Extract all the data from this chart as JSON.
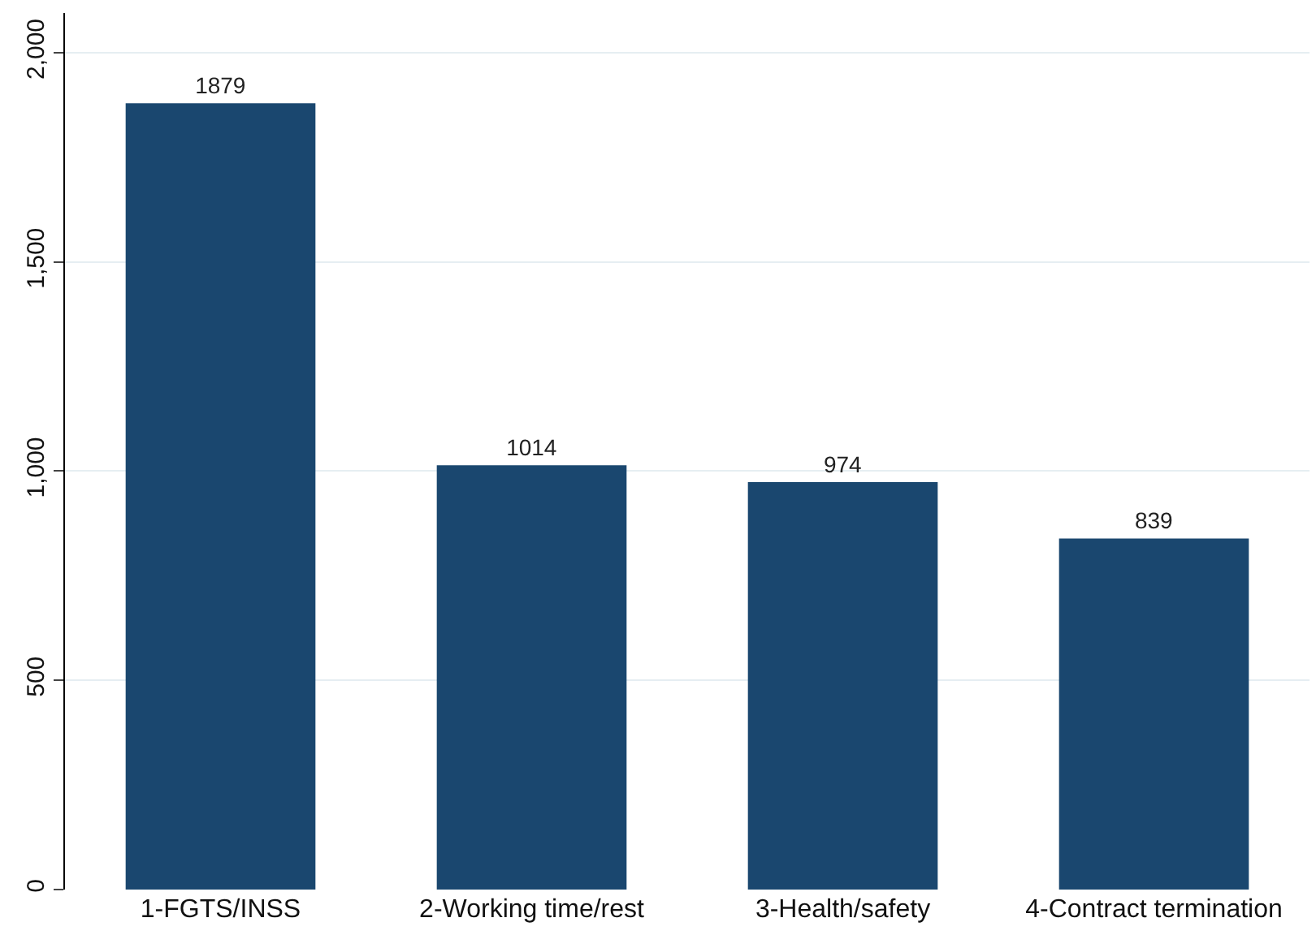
{
  "chart_data": {
    "type": "bar",
    "categories": [
      "1-FGTS/INSS",
      "2-Working time/rest",
      "3-Health/safety",
      "4-Contract termination"
    ],
    "values": [
      1879,
      1014,
      974,
      839
    ],
    "color": "#1a476f",
    "ylim": [
      0,
      2095
    ],
    "yticks": [
      0,
      500,
      {
        "value": 1000,
        "label": "1,000"
      },
      {
        "value": 1500,
        "label": "1,500"
      },
      {
        "value": 2000,
        "label": "2,000"
      }
    ],
    "grid": "y",
    "data_labels": true
  }
}
